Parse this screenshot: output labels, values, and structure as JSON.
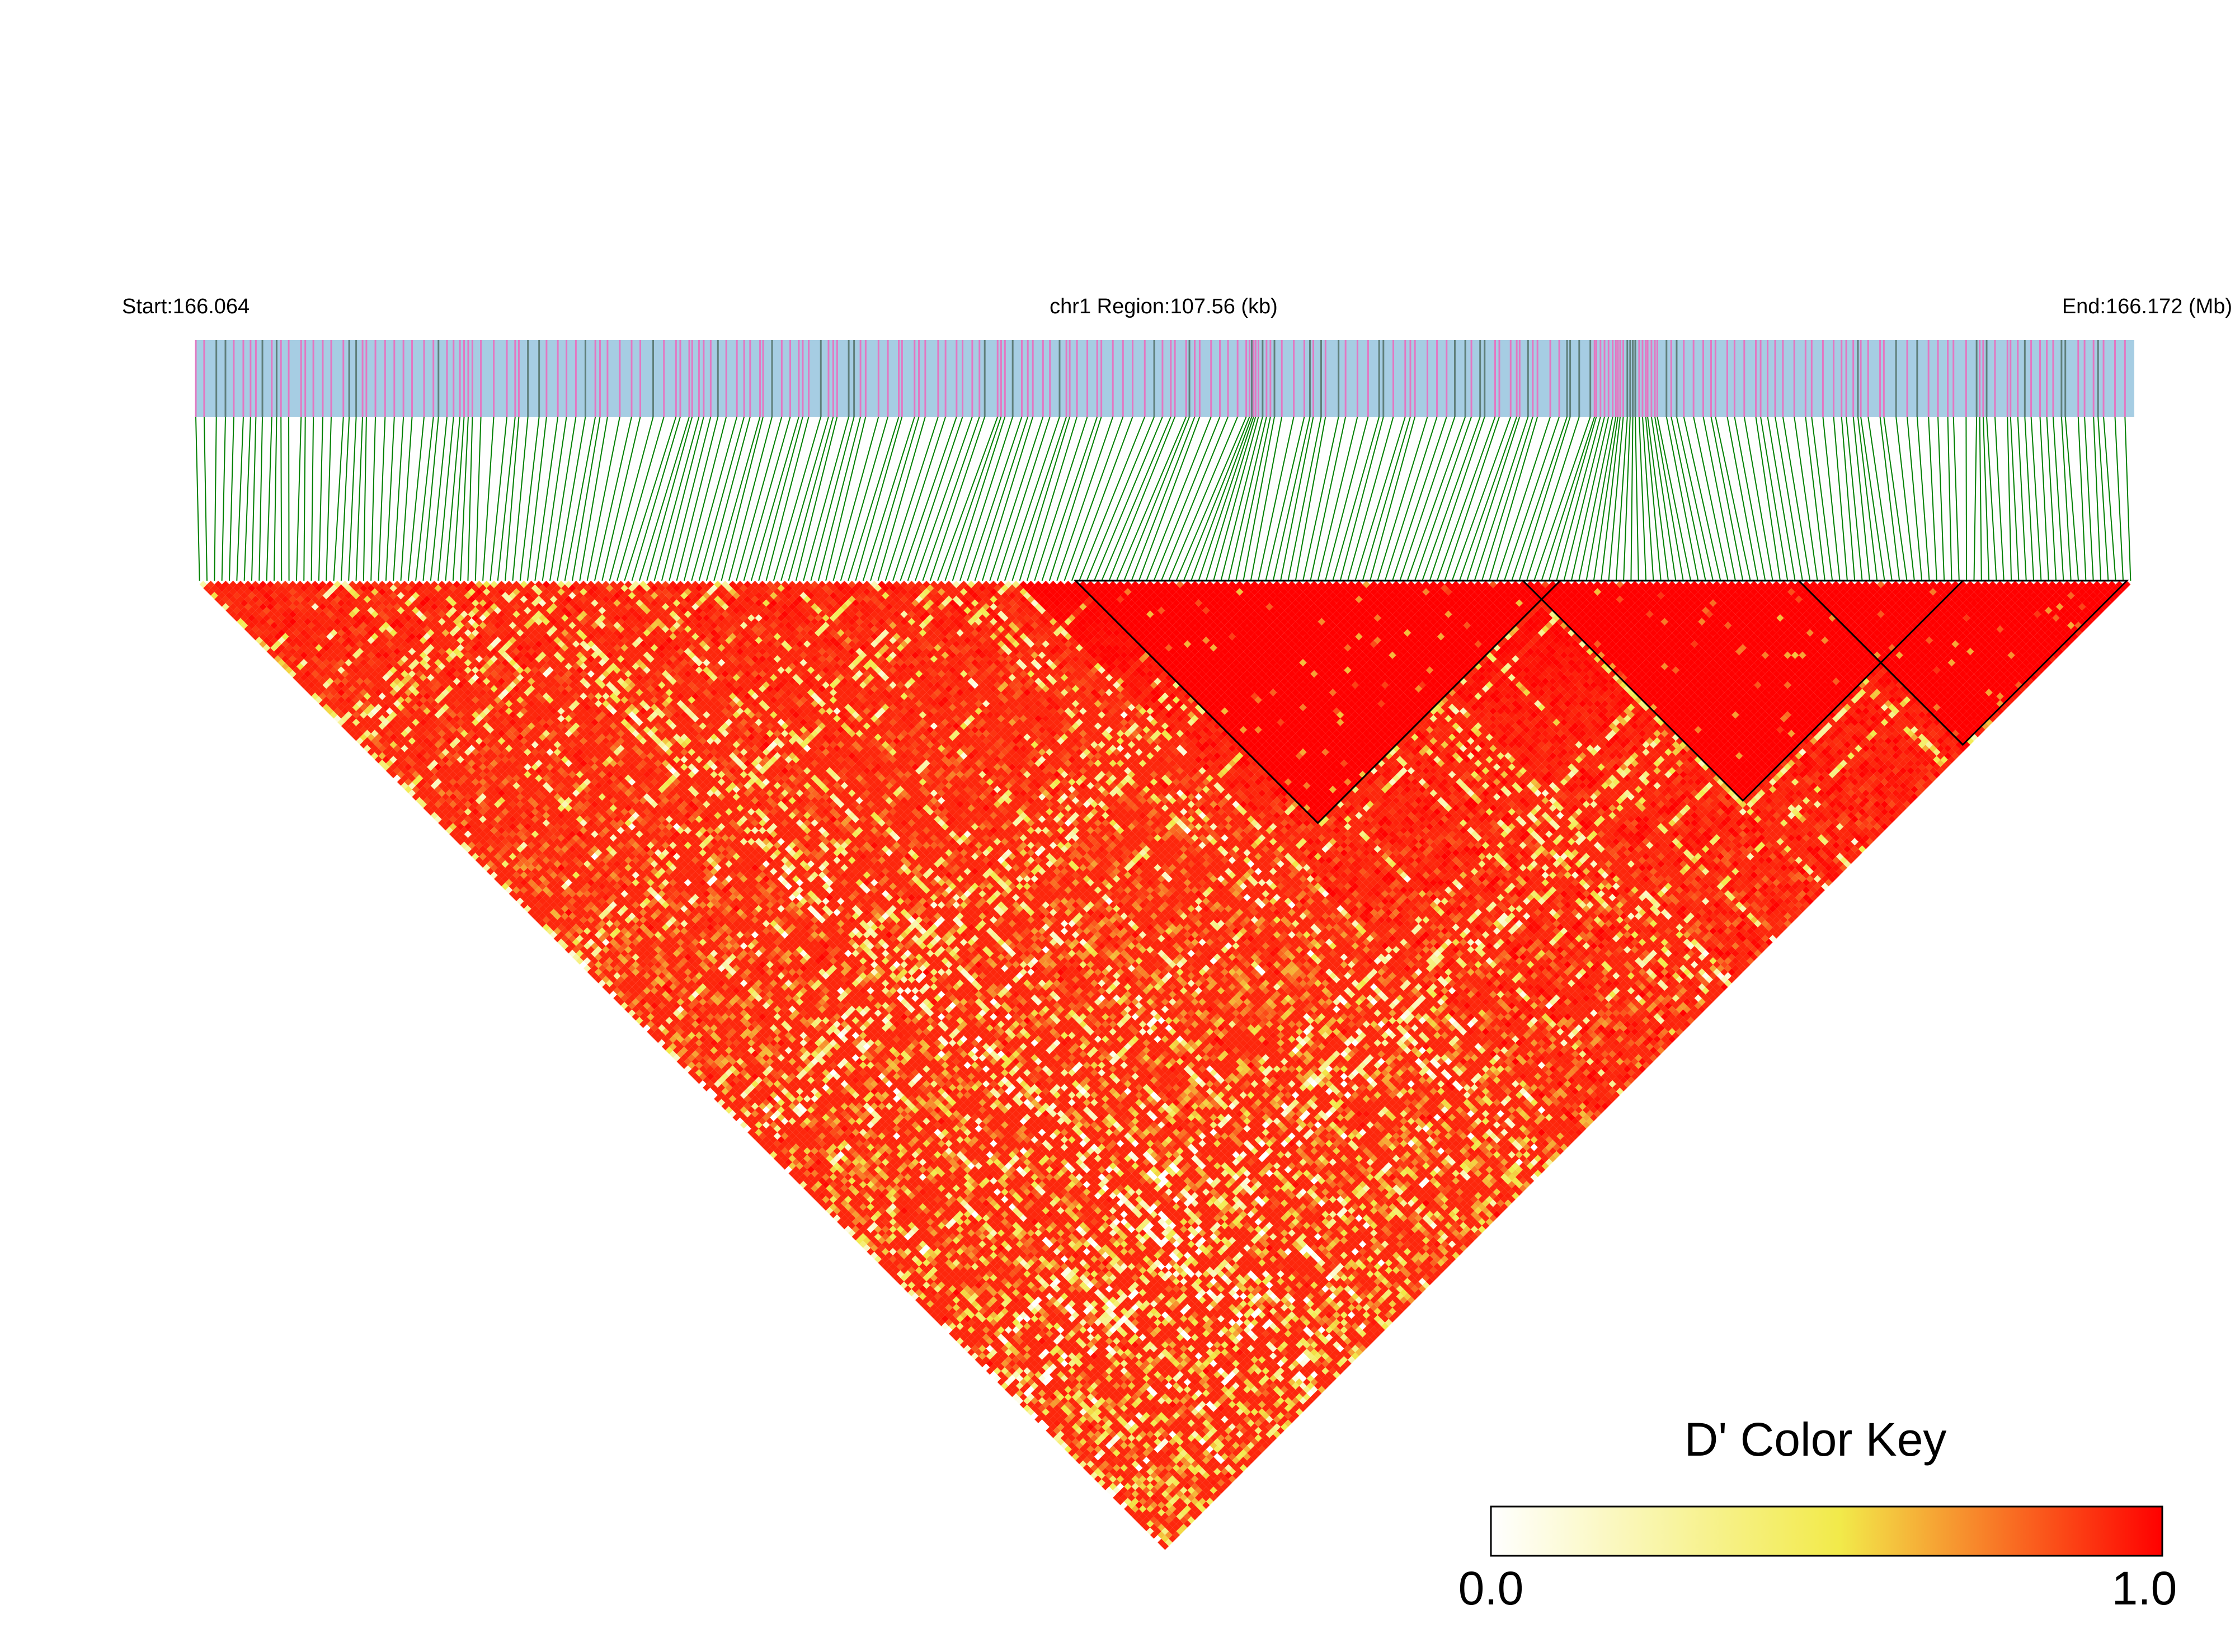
{
  "chart_data": {
    "type": "heatmap",
    "subtype": "linkage-disequilibrium-triangle",
    "start_label": "Start:166.064",
    "region_label": "chr1 Region:107.56 (kb)",
    "end_label": "End:166.172 (Mb)",
    "chromosome": "chr1",
    "region_start_mb": 166.064,
    "region_end_mb": 166.172,
    "region_size_kb": 107.56,
    "metric": "D'",
    "color_key": {
      "title": "D' Color Key",
      "min_label": "0.0",
      "max_label": "1.0",
      "min": 0.0,
      "max": 1.0,
      "stops": [
        "#ffffff",
        "#f2ea4a",
        "#ff0000"
      ]
    },
    "n_snps": 260,
    "snp_track_colors": {
      "background": "#a6cde3",
      "variant_a": "#e377c2",
      "variant_b": "#5f7f7a"
    },
    "connector_color": "#008000",
    "block_outline_color": "#000000",
    "high_ld_blocks_snp_ranges": [
      [
        118,
        182
      ],
      [
        178,
        236
      ],
      [
        215,
        258
      ]
    ]
  }
}
